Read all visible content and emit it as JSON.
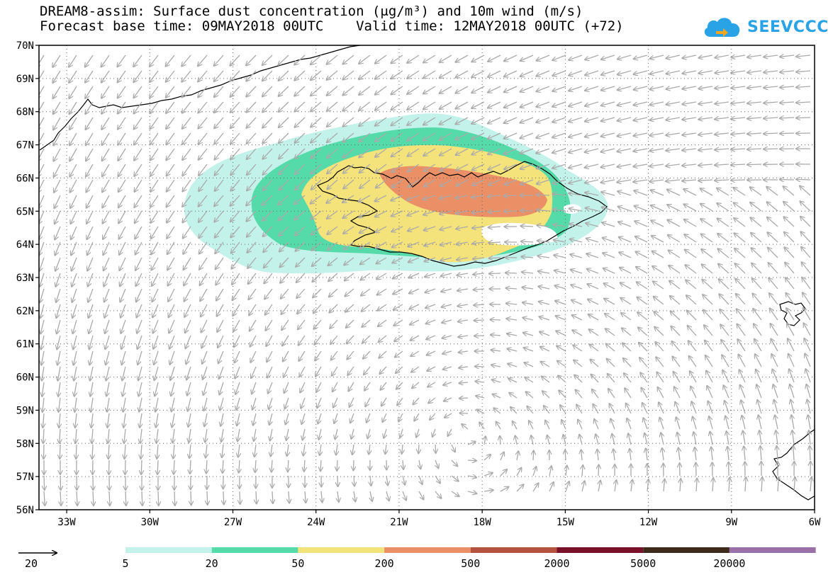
{
  "title": {
    "line1": "DREAM8-assim: Surface dust concentration (μg/m³) and 10m wind (m/s)",
    "line2": "Forecast base time: 09MAY2018 00UTC    Valid time: 12MAY2018 00UTC (+72)"
  },
  "logo": {
    "text": "SEEVCCC",
    "icon": "cloud-icon"
  },
  "map": {
    "lon_range": [
      -34,
      -6
    ],
    "lat_range": [
      56,
      70
    ],
    "lat_ticks": [
      "70N",
      "69N",
      "68N",
      "67N",
      "66N",
      "65N",
      "64N",
      "63N",
      "62N",
      "61N",
      "60N",
      "59N",
      "58N",
      "57N",
      "56N"
    ],
    "lon_ticks": [
      "33W",
      "30W",
      "27W",
      "24W",
      "21W",
      "18W",
      "15W",
      "12W",
      "9W",
      "6W"
    ],
    "grid": "dotted"
  },
  "wind_reference": {
    "label": "20"
  },
  "legend": {
    "colors": [
      "#c3f2ea",
      "#55dbaa",
      "#f4e27a",
      "#ea8f66",
      "#b5523f",
      "#7a0f2a",
      "#3e2a1a",
      "#9a70a8"
    ],
    "labels": [
      "5",
      "20",
      "50",
      "200",
      "500",
      "2000",
      "5000",
      "20000"
    ]
  },
  "chart_data": {
    "type": "map",
    "title": "DREAM8-assim: Surface dust concentration (μg/m³) and 10m wind (m/s)",
    "variable": "Surface dust concentration",
    "units": "μg/m³",
    "contour_levels": [
      5,
      20,
      50,
      200,
      500,
      2000,
      5000,
      20000
    ],
    "wind_units": "m/s",
    "wind_reference_vector": 20,
    "region": "Iceland and North Atlantic",
    "max_concentration_class": "200-500 over north-central Iceland"
  }
}
